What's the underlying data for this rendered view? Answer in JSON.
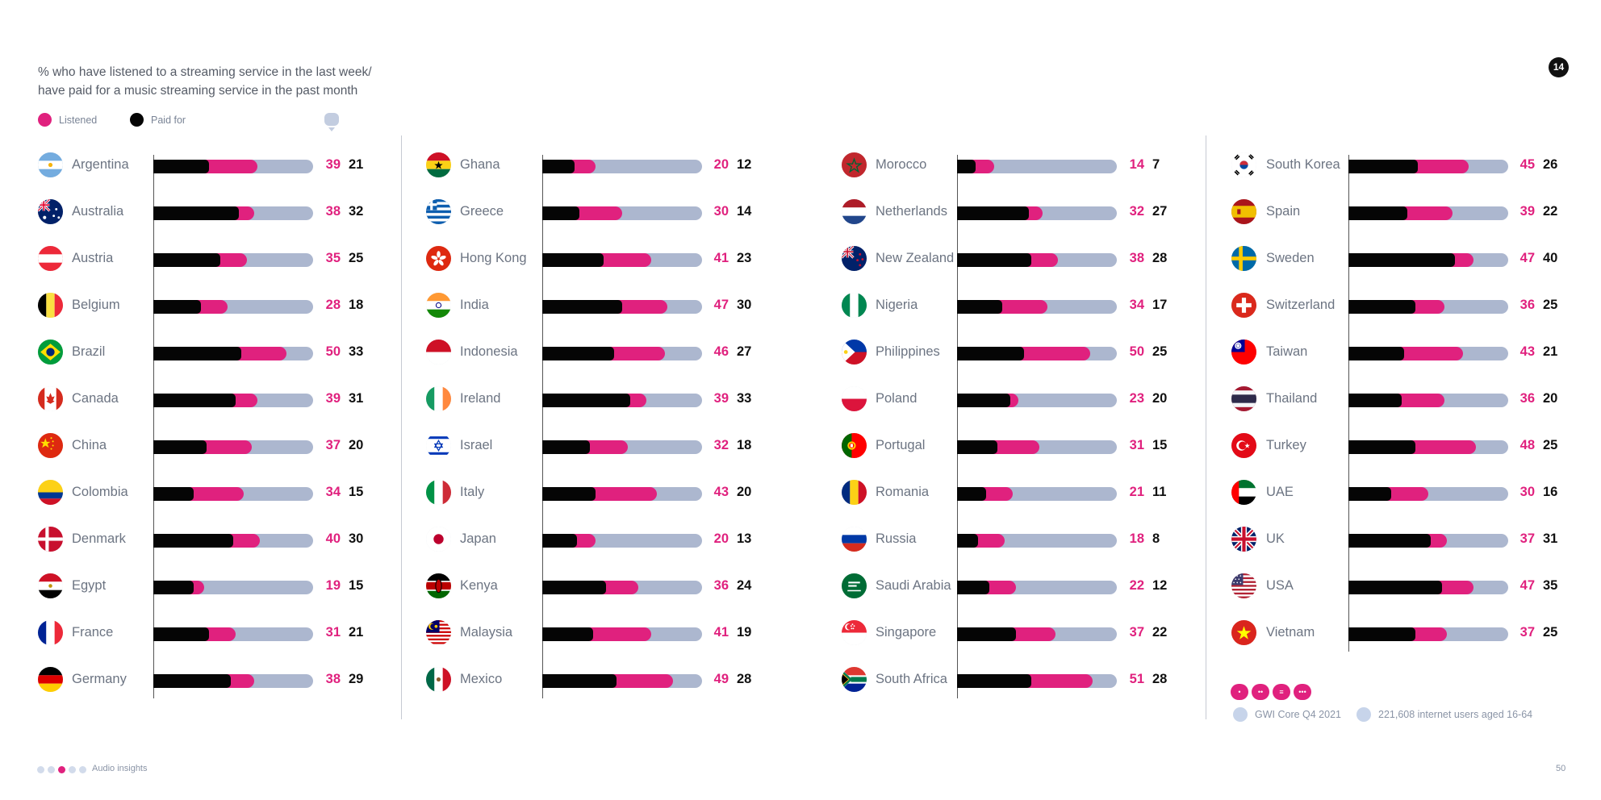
{
  "title_lines": [
    "% who have listened to a streaming service in the last week/",
    "have paid for a music streaming service in the past month"
  ],
  "page_badge": "14",
  "page_number": "50",
  "footer": {
    "section_label": "Audio insights"
  },
  "source": {
    "dataset": "GWI Core Q4 2021",
    "sample": "221,608 internet users aged 16-64"
  },
  "colors": {
    "listened": "#e0217e",
    "paid": "#050505",
    "track": "#acb7cf",
    "divider": "#c6cad3"
  },
  "chart_data": {
    "type": "bar",
    "title": "% who have listened to a streaming service in the last week/ have paid for a music streaming service in the past month",
    "legend": [
      {
        "name": "Listened",
        "color": "#e0217e"
      },
      {
        "name": "Paid for",
        "color": "#050505"
      }
    ],
    "xlim": [
      0,
      60
    ],
    "series": [
      {
        "name": "Listened"
      },
      {
        "name": "Paid for"
      }
    ],
    "columns": [
      {
        "rows": [
          {
            "country": "Argentina",
            "listened": 39,
            "paid": 21
          },
          {
            "country": "Australia",
            "listened": 38,
            "paid": 32
          },
          {
            "country": "Austria",
            "listened": 35,
            "paid": 25
          },
          {
            "country": "Belgium",
            "listened": 28,
            "paid": 18
          },
          {
            "country": "Brazil",
            "listened": 50,
            "paid": 33
          },
          {
            "country": "Canada",
            "listened": 39,
            "paid": 31
          },
          {
            "country": "China",
            "listened": 37,
            "paid": 20
          },
          {
            "country": "Colombia",
            "listened": 34,
            "paid": 15
          },
          {
            "country": "Denmark",
            "listened": 40,
            "paid": 30
          },
          {
            "country": "Egypt",
            "listened": 19,
            "paid": 15
          },
          {
            "country": "France",
            "listened": 31,
            "paid": 21
          },
          {
            "country": "Germany",
            "listened": 38,
            "paid": 29
          }
        ]
      },
      {
        "rows": [
          {
            "country": "Ghana",
            "listened": 20,
            "paid": 12
          },
          {
            "country": "Greece",
            "listened": 30,
            "paid": 14
          },
          {
            "country": "Hong Kong",
            "listened": 41,
            "paid": 23
          },
          {
            "country": "India",
            "listened": 47,
            "paid": 30
          },
          {
            "country": "Indonesia",
            "listened": 46,
            "paid": 27
          },
          {
            "country": "Ireland",
            "listened": 39,
            "paid": 33
          },
          {
            "country": "Israel",
            "listened": 32,
            "paid": 18
          },
          {
            "country": "Italy",
            "listened": 43,
            "paid": 20
          },
          {
            "country": "Japan",
            "listened": 20,
            "paid": 13
          },
          {
            "country": "Kenya",
            "listened": 36,
            "paid": 24
          },
          {
            "country": "Malaysia",
            "listened": 41,
            "paid": 19
          },
          {
            "country": "Mexico",
            "listened": 49,
            "paid": 28
          }
        ]
      },
      {
        "rows": [
          {
            "country": "Morocco",
            "listened": 14,
            "paid": 7
          },
          {
            "country": "Netherlands",
            "listened": 32,
            "paid": 27
          },
          {
            "country": "New Zealand",
            "listened": 38,
            "paid": 28
          },
          {
            "country": "Nigeria",
            "listened": 34,
            "paid": 17
          },
          {
            "country": "Philippines",
            "listened": 50,
            "paid": 25
          },
          {
            "country": "Poland",
            "listened": 23,
            "paid": 20
          },
          {
            "country": "Portugal",
            "listened": 31,
            "paid": 15
          },
          {
            "country": "Romania",
            "listened": 21,
            "paid": 11
          },
          {
            "country": "Russia",
            "listened": 18,
            "paid": 8
          },
          {
            "country": "Saudi Arabia",
            "listened": 22,
            "paid": 12
          },
          {
            "country": "Singapore",
            "listened": 37,
            "paid": 22
          },
          {
            "country": "South Africa",
            "listened": 51,
            "paid": 28
          }
        ]
      },
      {
        "rows": [
          {
            "country": "South Korea",
            "listened": 45,
            "paid": 26
          },
          {
            "country": "Spain",
            "listened": 39,
            "paid": 22
          },
          {
            "country": "Sweden",
            "listened": 47,
            "paid": 40
          },
          {
            "country": "Switzerland",
            "listened": 36,
            "paid": 25
          },
          {
            "country": "Taiwan",
            "listened": 43,
            "paid": 21
          },
          {
            "country": "Thailand",
            "listened": 36,
            "paid": 20
          },
          {
            "country": "Turkey",
            "listened": 48,
            "paid": 25
          },
          {
            "country": "UAE",
            "listened": 30,
            "paid": 16
          },
          {
            "country": "UK",
            "listened": 37,
            "paid": 31
          },
          {
            "country": "USA",
            "listened": 47,
            "paid": 35
          },
          {
            "country": "Vietnam",
            "listened": 37,
            "paid": 25
          }
        ]
      }
    ]
  }
}
